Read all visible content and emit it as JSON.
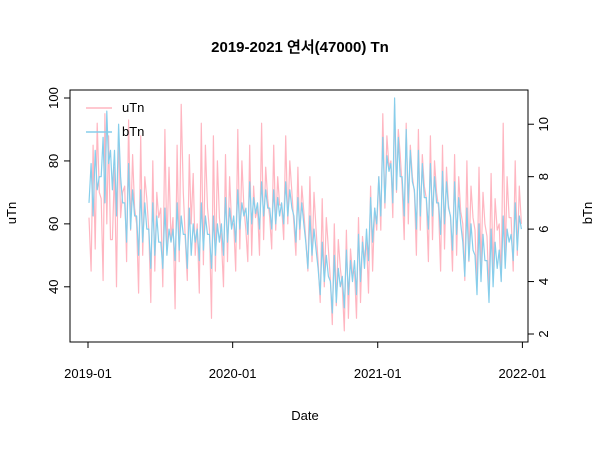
{
  "chart_data": {
    "type": "line",
    "title": "2019-2021 연서(47000) Tn",
    "xlabel": "Date",
    "ylabel_left": "uTn",
    "ylabel_right": "bTn",
    "x_range": [
      "2019-01-01",
      "2021-12-31"
    ],
    "x_ticks": [
      "2019-01",
      "2020-01",
      "2021-01",
      "2022-01"
    ],
    "y_left_range": [
      25,
      100
    ],
    "y_left_ticks": [
      40,
      60,
      80,
      100
    ],
    "y_right_range": [
      2,
      11
    ],
    "y_right_ticks": [
      2,
      4,
      6,
      8,
      10
    ],
    "grid": false,
    "legend": {
      "position": "top-left",
      "entries": [
        "uTn",
        "bTn"
      ]
    },
    "series": [
      {
        "name": "uTn",
        "axis": "left",
        "color": "#FFB6C1",
        "monthly_profile": [
          {
            "month": "2019-01",
            "values": [
              62,
              45,
              85,
              52,
              92,
              70
            ]
          },
          {
            "month": "2019-02",
            "values": [
              68,
              42,
              95,
              60,
              88,
              55
            ]
          },
          {
            "month": "2019-03",
            "values": [
              55,
              78,
              40,
              90,
              62,
              70
            ]
          },
          {
            "month": "2019-04",
            "values": [
              72,
              48,
              93,
              58,
              82,
              65
            ]
          },
          {
            "month": "2019-05",
            "values": [
              60,
              38,
              88,
              50,
              75,
              68
            ]
          },
          {
            "month": "2019-06",
            "values": [
              58,
              35,
              80,
              45,
              70,
              62
            ]
          },
          {
            "month": "2019-07",
            "values": [
              65,
              40,
              90,
              52,
              78,
              55
            ]
          },
          {
            "month": "2019-08",
            "values": [
              62,
              33,
              85,
              48,
              98,
              70
            ]
          },
          {
            "month": "2019-09",
            "values": [
              55,
              42,
              82,
              60,
              76,
              50
            ]
          },
          {
            "month": "2019-10",
            "values": [
              60,
              38,
              92,
              47,
              85,
              65
            ]
          },
          {
            "month": "2019-11",
            "values": [
              58,
              30,
              88,
              45,
              80,
              62
            ]
          },
          {
            "month": "2019-12",
            "values": [
              55,
              40,
              82,
              48,
              75,
              60
            ]
          },
          {
            "month": "2020-01",
            "values": [
              60,
              45,
              90,
              52,
              80,
              65
            ]
          },
          {
            "month": "2020-02",
            "values": [
              58,
              48,
              85,
              50,
              72,
              62
            ]
          },
          {
            "month": "2020-03",
            "values": [
              65,
              50,
              92,
              55,
              78,
              68
            ]
          },
          {
            "month": "2020-04",
            "values": [
              62,
              52,
              85,
              58,
              75,
              66
            ]
          },
          {
            "month": "2020-05",
            "values": [
              66,
              55,
              88,
              60,
              80,
              70
            ]
          },
          {
            "month": "2020-06",
            "values": [
              60,
              50,
              78,
              55,
              72,
              64
            ]
          },
          {
            "month": "2020-07",
            "values": [
              55,
              45,
              75,
              48,
              70,
              58
            ]
          },
          {
            "month": "2020-08",
            "values": [
              48,
              35,
              68,
              40,
              62,
              52
            ]
          },
          {
            "month": "2020-09",
            "values": [
              42,
              28,
              60,
              34,
              55,
              46
            ]
          },
          {
            "month": "2020-10",
            "values": [
              40,
              26,
              58,
              30,
              52,
              44
            ]
          },
          {
            "month": "2020-11",
            "values": [
              45,
              30,
              62,
              35,
              56,
              48
            ]
          },
          {
            "month": "2020-12",
            "values": [
              55,
              38,
              72,
              45,
              65,
              58
            ]
          },
          {
            "month": "2021-01",
            "values": [
              75,
              58,
              95,
              65,
              88,
              78
            ]
          },
          {
            "month": "2021-02",
            "values": [
              80,
              62,
              98,
              70,
              90,
              82
            ]
          },
          {
            "month": "2021-03",
            "values": [
              72,
              55,
              92,
              60,
              85,
              75
            ]
          },
          {
            "month": "2021-04",
            "values": [
              70,
              50,
              90,
              58,
              82,
              72
            ]
          },
          {
            "month": "2021-05",
            "values": [
              68,
              48,
              88,
              55,
              80,
              70
            ]
          },
          {
            "month": "2021-06",
            "values": [
              65,
              45,
              85,
              52,
              78,
              66
            ]
          },
          {
            "month": "2021-07",
            "values": [
              62,
              45,
              82,
              50,
              75,
              64
            ]
          },
          {
            "month": "2021-08",
            "values": [
              60,
              42,
              80,
              48,
              72,
              62
            ]
          },
          {
            "month": "2021-09",
            "values": [
              58,
              40,
              78,
              46,
              70,
              60
            ]
          },
          {
            "month": "2021-10",
            "values": [
              56,
              38,
              76,
              44,
              68,
              58
            ]
          },
          {
            "month": "2021-11",
            "values": [
              60,
              42,
              92,
              48,
              75,
              62
            ]
          },
          {
            "month": "2021-12",
            "values": [
              62,
              45,
              80,
              50,
              72,
              60
            ]
          }
        ]
      },
      {
        "name": "bTn",
        "axis": "right",
        "color": "#87CEEB",
        "monthly_profile": [
          {
            "month": "2019-01",
            "values": [
              7.0,
              8.5,
              6.5,
              9.0,
              7.5,
              8.0
            ]
          },
          {
            "month": "2019-02",
            "values": [
              8.0,
              9.5,
              7.0,
              10.5,
              8.5,
              9.0
            ]
          },
          {
            "month": "2019-03",
            "values": [
              7.5,
              9.0,
              6.5,
              10.0,
              8.0,
              7.0
            ]
          },
          {
            "month": "2019-04",
            "values": [
              7.0,
              5.5,
              8.5,
              6.0,
              7.5,
              6.5
            ]
          },
          {
            "month": "2019-05",
            "values": [
              6.5,
              5.0,
              7.5,
              5.5,
              7.0,
              6.0
            ]
          },
          {
            "month": "2019-06",
            "values": [
              6.0,
              4.5,
              7.0,
              5.0,
              6.5,
              5.5
            ]
          },
          {
            "month": "2019-07",
            "values": [
              5.5,
              4.5,
              6.8,
              5.0,
              6.0,
              5.5
            ]
          },
          {
            "month": "2019-08",
            "values": [
              6.0,
              4.8,
              7.0,
              5.2,
              6.5,
              5.8
            ]
          },
          {
            "month": "2019-09",
            "values": [
              5.8,
              4.5,
              6.8,
              5.0,
              6.2,
              5.5
            ]
          },
          {
            "month": "2019-10",
            "values": [
              6.0,
              4.8,
              7.0,
              5.2,
              6.5,
              5.8
            ]
          },
          {
            "month": "2019-11",
            "values": [
              5.8,
              4.5,
              6.5,
              5.0,
              6.2,
              5.5
            ]
          },
          {
            "month": "2019-12",
            "values": [
              6.2,
              5.0,
              7.2,
              5.5,
              6.8,
              6.0
            ]
          },
          {
            "month": "2020-01",
            "values": [
              6.5,
              5.5,
              7.5,
              6.0,
              7.0,
              6.5
            ]
          },
          {
            "month": "2020-02",
            "values": [
              6.8,
              5.8,
              7.8,
              6.2,
              7.2,
              6.6
            ]
          },
          {
            "month": "2020-03",
            "values": [
              7.0,
              6.0,
              7.8,
              6.5,
              7.5,
              6.8
            ]
          },
          {
            "month": "2020-04",
            "values": [
              6.8,
              6.0,
              7.5,
              6.2,
              7.2,
              6.5
            ]
          },
          {
            "month": "2020-05",
            "values": [
              7.0,
              6.2,
              7.8,
              6.5,
              7.5,
              6.8
            ]
          },
          {
            "month": "2020-06",
            "values": [
              6.5,
              5.5,
              7.2,
              6.0,
              7.0,
              6.2
            ]
          },
          {
            "month": "2020-07",
            "values": [
              5.5,
              4.5,
              6.5,
              5.0,
              6.0,
              5.2
            ]
          },
          {
            "month": "2020-08",
            "values": [
              4.5,
              3.5,
              5.5,
              4.0,
              5.0,
              4.2
            ]
          },
          {
            "month": "2020-09",
            "values": [
              4.0,
              2.8,
              5.0,
              3.2,
              4.5,
              3.8
            ]
          },
          {
            "month": "2020-10",
            "values": [
              4.2,
              3.0,
              5.2,
              3.5,
              4.8,
              4.0
            ]
          },
          {
            "month": "2020-11",
            "values": [
              4.8,
              3.5,
              5.8,
              4.0,
              5.5,
              4.5
            ]
          },
          {
            "month": "2020-12",
            "values": [
              6.0,
              4.8,
              7.2,
              5.5,
              6.8,
              6.2
            ]
          },
          {
            "month": "2021-01",
            "values": [
              8.0,
              6.5,
              9.5,
              7.0,
              8.8,
              8.2
            ]
          },
          {
            "month": "2021-02",
            "values": [
              8.5,
              7.0,
              11.0,
              7.5,
              9.5,
              8.0
            ]
          },
          {
            "month": "2021-03",
            "values": [
              8.0,
              6.5,
              9.8,
              7.0,
              9.0,
              7.8
            ]
          },
          {
            "month": "2021-04",
            "values": [
              7.5,
              6.0,
              9.0,
              6.5,
              8.5,
              7.2
            ]
          },
          {
            "month": "2021-05",
            "values": [
              7.2,
              6.0,
              8.5,
              6.5,
              8.0,
              7.0
            ]
          },
          {
            "month": "2021-06",
            "values": [
              7.0,
              5.8,
              8.2,
              6.2,
              7.8,
              6.8
            ]
          },
          {
            "month": "2021-07",
            "values": [
              6.5,
              5.2,
              7.8,
              5.8,
              7.2,
              6.2
            ]
          },
          {
            "month": "2021-08",
            "values": [
              5.5,
              4.2,
              6.8,
              4.8,
              6.2,
              5.2
            ]
          },
          {
            "month": "2021-09",
            "values": [
              5.0,
              3.5,
              6.2,
              4.0,
              5.8,
              4.8
            ]
          },
          {
            "month": "2021-10",
            "values": [
              4.8,
              3.2,
              6.0,
              3.8,
              5.5,
              4.5
            ]
          },
          {
            "month": "2021-11",
            "values": [
              5.2,
              4.0,
              6.5,
              4.5,
              6.0,
              5.5
            ]
          },
          {
            "month": "2021-12",
            "values": [
              5.8,
              4.8,
              7.0,
              5.2,
              6.5,
              6.0
            ]
          }
        ]
      }
    ]
  }
}
